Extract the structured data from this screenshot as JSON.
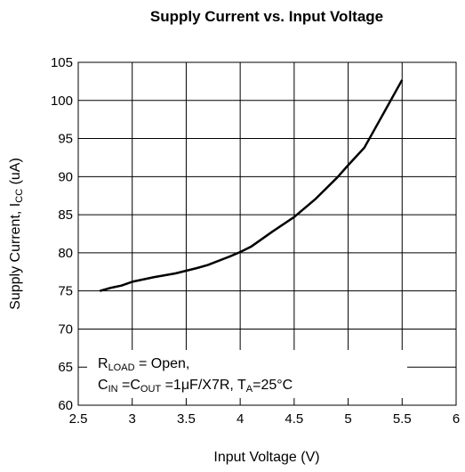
{
  "chart_data": {
    "type": "line",
    "title": "Supply Current vs. Input Voltage",
    "x_label": "Input Voltage (V)",
    "y_label": [
      "Supply Current, I",
      "CC",
      " (uA)"
    ],
    "annotation": [
      [
        "R",
        "LOAD",
        " = Open,"
      ],
      [
        "C",
        "IN",
        " =C",
        "OUT",
        " =1μF/X7R, T",
        "A",
        "=25°C"
      ]
    ],
    "x": [
      2.7,
      2.8,
      2.9,
      3.0,
      3.2,
      3.4,
      3.6,
      3.7,
      3.9,
      4.0,
      4.1,
      4.3,
      4.5,
      4.7,
      4.9,
      5.0,
      5.15,
      5.3,
      5.5
    ],
    "series": [
      {
        "name": "Supply Current",
        "color": "#000000",
        "values": [
          75,
          75.4,
          75.7,
          76.2,
          76.8,
          77.3,
          78.0,
          78.4,
          79.5,
          80.1,
          80.8,
          82.8,
          84.7,
          87.1,
          89.9,
          91.5,
          93.8,
          97.6,
          102.7
        ]
      }
    ],
    "xlim": [
      2.5,
      6
    ],
    "xticks": [
      2.5,
      3,
      3.5,
      4,
      4.5,
      5,
      5.5,
      6
    ],
    "ylim": [
      60,
      105
    ],
    "yticks": [
      60,
      65,
      70,
      75,
      80,
      85,
      90,
      95,
      100,
      105
    ],
    "grid": true
  }
}
